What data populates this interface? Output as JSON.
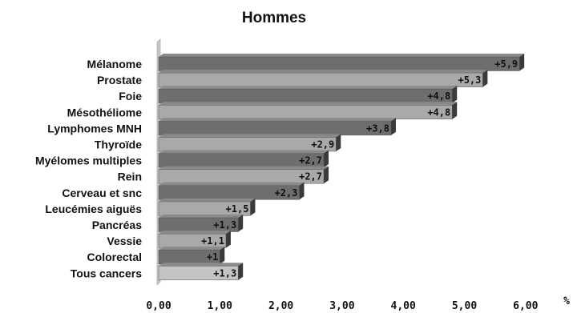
{
  "chart_data": {
    "type": "bar",
    "orientation": "horizontal",
    "title": "Hommes",
    "xlabel": "%",
    "ylabel": "",
    "xlim": [
      0,
      6
    ],
    "tick_labels": [
      "0,00",
      "1,00",
      "2,00",
      "3,00",
      "4,00",
      "5,00",
      "6,00"
    ],
    "grid": false,
    "categories": [
      "Mélanome",
      "Prostate",
      "Foie",
      "Mésothéliome",
      "Lymphomes MNH",
      "Thyroïde",
      "Myélomes multiples",
      "Rein",
      "Cerveau et snc",
      "Leucémies aiguës",
      "Pancréas",
      "Vessie",
      "Colorectal",
      "Tous cancers"
    ],
    "values": [
      5.9,
      5.3,
      4.8,
      4.8,
      3.8,
      2.9,
      2.7,
      2.7,
      2.3,
      1.5,
      1.3,
      1.1,
      1,
      1.3
    ],
    "value_labels": [
      "+5,9",
      "+5,3",
      "+4,8",
      "+4,8",
      "+3,8",
      "+2,9",
      "+2,7",
      "+2,7",
      "+2,3",
      "+1,5",
      "+1,3",
      "+1,1",
      "+1",
      "+1,3"
    ],
    "colors": {
      "dark_bar": "#6e6e6e",
      "light_bar": "#a9a9a9",
      "total_bar": "#c4c4c4",
      "bar_side": "#3a3a3a",
      "bar_top": "#8a8a8a"
    }
  }
}
